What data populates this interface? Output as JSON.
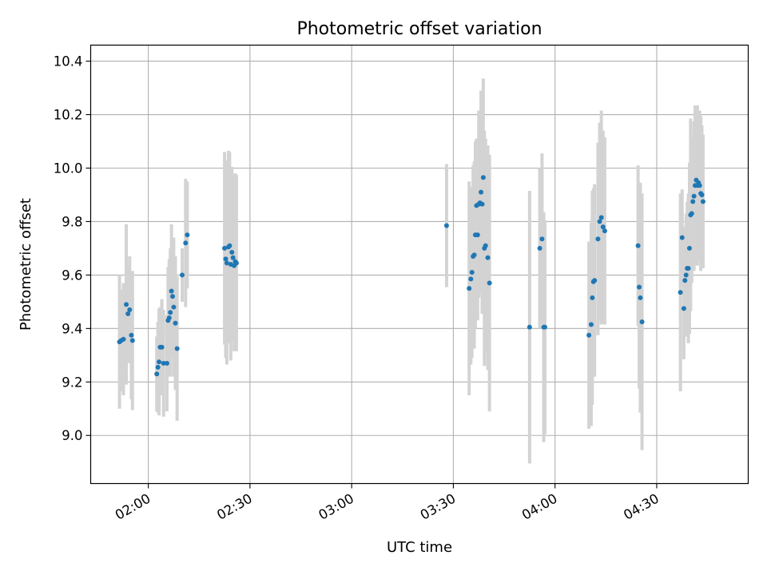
{
  "chart_data": {
    "type": "scatter",
    "title": "Photometric offset variation",
    "xlabel": "UTC time",
    "ylabel": "Photometric offset",
    "x_axis_kind": "time",
    "xlim": [
      "01:43",
      "04:57"
    ],
    "ylim": [
      8.82,
      10.46
    ],
    "x_ticks": [
      "02:00",
      "02:30",
      "03:00",
      "03:30",
      "04:00",
      "04:30"
    ],
    "y_ticks": [
      9.0,
      9.2,
      9.4,
      9.6,
      9.8,
      10.0,
      10.2,
      10.4
    ],
    "y_tick_labels": [
      "9.0",
      "9.2",
      "9.4",
      "9.6",
      "9.8",
      "10.0",
      "10.2",
      "10.4"
    ],
    "grid": true,
    "point_color": "#1f77b4",
    "errorbar_color": "#d3d3d3",
    "series": [
      {
        "x": [
          "01:51:30",
          "01:52:00",
          "01:52:40",
          "01:53:30",
          "01:54:00",
          "01:54:30",
          "01:55:00",
          "01:55:20",
          "02:02:30",
          "02:02:50",
          "02:03:10",
          "02:03:30",
          "02:04:00",
          "02:04:30",
          "02:05:30",
          "02:05:50",
          "02:06:10",
          "02:06:30",
          "02:06:50",
          "02:07:10",
          "02:07:30",
          "02:08:00",
          "02:08:30",
          "02:10:00",
          "02:11:00",
          "02:11:30",
          "02:22:30",
          "02:22:50",
          "02:23:10",
          "02:23:40",
          "02:24:00",
          "02:24:20",
          "02:24:40",
          "02:25:00",
          "02:25:20",
          "02:25:40",
          "02:26:00",
          "03:28:00",
          "03:34:40",
          "03:35:10",
          "03:35:30",
          "03:35:50",
          "03:36:10",
          "03:36:30",
          "03:36:50",
          "03:37:10",
          "03:37:30",
          "03:37:50",
          "03:38:10",
          "03:38:30",
          "03:38:50",
          "03:39:10",
          "03:39:30",
          "03:40:10",
          "03:40:40",
          "03:52:30",
          "03:55:30",
          "03:56:10",
          "03:56:40",
          "03:57:00",
          "04:10:00",
          "04:10:40",
          "04:11:00",
          "04:11:20",
          "04:11:40",
          "04:12:40",
          "04:13:10",
          "04:13:40",
          "04:14:10",
          "04:14:40",
          "04:24:30",
          "04:24:50",
          "04:25:10",
          "04:25:40",
          "04:37:00",
          "04:37:30",
          "04:38:00",
          "04:38:20",
          "04:38:40",
          "04:39:00",
          "04:39:20",
          "04:39:40",
          "04:40:00",
          "04:40:20",
          "04:40:40",
          "04:41:00",
          "04:41:20",
          "04:41:40",
          "04:42:00",
          "04:42:20",
          "04:42:40",
          "04:43:00",
          "04:43:20",
          "04:43:40"
        ],
        "y": [
          9.35,
          9.355,
          9.36,
          9.49,
          9.455,
          9.47,
          9.375,
          9.355,
          9.23,
          9.255,
          9.275,
          9.33,
          9.33,
          9.27,
          9.27,
          9.43,
          9.44,
          9.46,
          9.54,
          9.52,
          9.48,
          9.42,
          9.325,
          9.6,
          9.72,
          9.75,
          9.7,
          9.66,
          9.645,
          9.705,
          9.71,
          9.64,
          9.685,
          9.665,
          9.635,
          9.65,
          9.645,
          9.785,
          9.55,
          9.585,
          9.61,
          9.67,
          9.675,
          9.75,
          9.86,
          9.75,
          9.865,
          9.87,
          9.91,
          9.865,
          9.965,
          9.7,
          9.71,
          9.665,
          9.57,
          9.405,
          9.7,
          9.735,
          9.405,
          9.405,
          9.375,
          9.415,
          9.515,
          9.575,
          9.58,
          9.735,
          9.8,
          9.815,
          9.78,
          9.765,
          9.71,
          9.555,
          9.515,
          9.425,
          9.535,
          9.74,
          9.475,
          9.58,
          9.6,
          9.625,
          9.625,
          9.7,
          9.825,
          9.83,
          9.875,
          9.895,
          9.935,
          9.955,
          9.935,
          9.945,
          9.935,
          9.905,
          9.9,
          9.875
        ],
        "yerr": [
          0.25,
          0.19,
          0.21,
          0.3,
          0.18,
          0.2,
          0.24,
          0.26,
          0.14,
          0.17,
          0.2,
          0.15,
          0.18,
          0.2,
          0.18,
          0.2,
          0.22,
          0.24,
          0.25,
          0.22,
          0.26,
          0.25,
          0.27,
          0.1,
          0.24,
          0.2,
          0.36,
          0.37,
          0.38,
          0.36,
          0.35,
          0.36,
          0.32,
          0.31,
          0.32,
          0.33,
          0.33,
          0.23,
          0.4,
          0.32,
          0.32,
          0.34,
          0.35,
          0.35,
          0.25,
          0.32,
          0.35,
          0.34,
          0.38,
          0.41,
          0.37,
          0.44,
          0.4,
          0.42,
          0.48,
          0.51,
          0.3,
          0.32,
          0.43,
          0.4,
          0.35,
          0.38,
          0.4,
          0.35,
          0.36,
          0.36,
          0.37,
          0.4,
          0.36,
          0.35,
          0.3,
          0.38,
          0.43,
          0.48,
          0.37,
          0.18,
          0.19,
          0.2,
          0.23,
          0.25,
          0.28,
          0.32,
          0.36,
          0.26,
          0.24,
          0.28,
          0.3,
          0.25,
          0.3,
          0.25,
          0.28,
          0.29,
          0.26,
          0.25
        ]
      }
    ]
  }
}
